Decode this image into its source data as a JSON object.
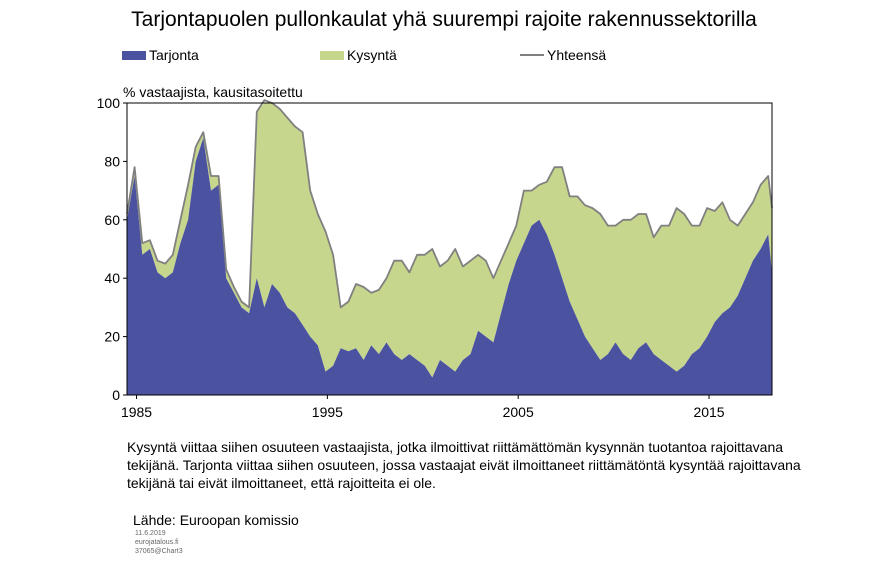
{
  "title": "Tarjontapuolen pullonkaulat yhä suurempi rajoite rakennussektorilla",
  "ylabel": "% vastaajista, kausitasoitettu",
  "note": "Kysyntä viittaa siihen osuuteen vastaajista, jotka ilmoittivat riittämättömän kysynnän tuotantoa rajoittavana tekijänä. Tarjonta viittaa siihen osuuteen, jossa vastaajat eivät ilmoittaneet riittämätöntä kysyntää rajoittavana tekijänä tai eivät ilmoittaneet, että rajoitteita ei ole.",
  "source": "Lähde: Euroopan komissio",
  "footer": {
    "date": "11.6.2019",
    "site": "eurojatalous.fi",
    "id": "37065@Chart3"
  },
  "colors": {
    "tarjonta": "#4b52a0",
    "kysynta": "#c6d68c",
    "yhteensa": "#808080"
  },
  "chart_data": {
    "type": "area",
    "stacked": true,
    "ylim": [
      0,
      100
    ],
    "yticks": [
      0,
      20,
      40,
      60,
      80,
      100
    ],
    "xlim": [
      1984.5,
      2018.3
    ],
    "xticks": [
      {
        "value": 1985,
        "label": "1985"
      },
      {
        "value": 1995,
        "label": "1995"
      },
      {
        "value": 2005,
        "label": "2005"
      },
      {
        "value": 2015,
        "label": "2015"
      }
    ],
    "legend_position": "top",
    "grid": false,
    "x": [
      1984.5,
      1984.9,
      1985.3,
      1985.7,
      1986.1,
      1986.5,
      1986.9,
      1987.3,
      1987.7,
      1988.1,
      1988.5,
      1988.9,
      1989.3,
      1989.7,
      1990.1,
      1990.5,
      1990.9,
      1991.3,
      1991.7,
      1992.1,
      1992.5,
      1992.9,
      1993.3,
      1993.7,
      1994.1,
      1994.5,
      1994.9,
      1995.3,
      1995.7,
      1996.1,
      1996.5,
      1996.9,
      1997.3,
      1997.7,
      1998.1,
      1998.5,
      1998.9,
      1999.3,
      1999.7,
      2000.1,
      2000.5,
      2000.9,
      2001.3,
      2001.7,
      2002.1,
      2002.5,
      2002.9,
      2003.3,
      2003.7,
      2004.1,
      2004.5,
      2004.9,
      2005.3,
      2005.7,
      2006.1,
      2006.5,
      2006.9,
      2007.3,
      2007.7,
      2008.1,
      2008.5,
      2008.9,
      2009.3,
      2009.7,
      2010.1,
      2010.5,
      2010.9,
      2011.3,
      2011.7,
      2012.1,
      2012.5,
      2012.9,
      2013.3,
      2013.7,
      2014.1,
      2014.5,
      2014.9,
      2015.3,
      2015.7,
      2016.1,
      2016.5,
      2016.9,
      2017.3,
      2017.7,
      2018.1,
      2018.3
    ],
    "series": [
      {
        "name": "Tarjonta",
        "kind": "area",
        "values": [
          60,
          75,
          48,
          50,
          42,
          40,
          42,
          52,
          60,
          80,
          88,
          70,
          72,
          40,
          35,
          30,
          28,
          40,
          30,
          38,
          35,
          30,
          28,
          24,
          20,
          17,
          8,
          10,
          16,
          15,
          16,
          12,
          17,
          14,
          18,
          14,
          12,
          14,
          12,
          10,
          6,
          12,
          10,
          8,
          12,
          14,
          22,
          20,
          18,
          28,
          38,
          46,
          52,
          58,
          60,
          55,
          48,
          40,
          32,
          26,
          20,
          16,
          12,
          14,
          18,
          14,
          12,
          16,
          18,
          14,
          12,
          10,
          8,
          10,
          14,
          16,
          20,
          25,
          28,
          30,
          34,
          40,
          46,
          50,
          55,
          42
        ]
      },
      {
        "name": "Kysyntä",
        "kind": "area",
        "values": [
          2,
          3,
          4,
          3,
          4,
          5,
          6,
          8,
          12,
          5,
          2,
          5,
          3,
          3,
          2,
          2,
          2,
          57,
          72,
          62,
          63,
          65,
          64,
          66,
          50,
          45,
          48,
          38,
          14,
          17,
          22,
          25,
          18,
          22,
          22,
          32,
          34,
          28,
          36,
          38,
          44,
          32,
          36,
          42,
          32,
          32,
          26,
          26,
          22,
          18,
          14,
          12,
          18,
          12,
          12,
          18,
          30,
          38,
          36,
          42,
          45,
          48,
          50,
          44,
          40,
          46,
          48,
          46,
          44,
          40,
          46,
          48,
          56,
          52,
          44,
          42,
          44,
          38,
          38,
          30,
          24,
          22,
          20,
          22,
          20,
          22
        ]
      },
      {
        "name": "Yhteensä",
        "kind": "line",
        "values": [
          62,
          78,
          52,
          53,
          46,
          45,
          48,
          60,
          72,
          85,
          90,
          75,
          75,
          43,
          37,
          32,
          30,
          97,
          102,
          100,
          98,
          95,
          92,
          90,
          70,
          62,
          56,
          48,
          30,
          32,
          38,
          37,
          35,
          36,
          40,
          46,
          46,
          42,
          48,
          48,
          50,
          44,
          46,
          50,
          44,
          46,
          48,
          46,
          40,
          46,
          52,
          58,
          70,
          70,
          72,
          73,
          78,
          78,
          68,
          68,
          65,
          64,
          62,
          58,
          58,
          60,
          60,
          62,
          62,
          54,
          58,
          58,
          64,
          62,
          58,
          58,
          64,
          63,
          66,
          60,
          58,
          62,
          66,
          72,
          75,
          64
        ]
      }
    ]
  }
}
